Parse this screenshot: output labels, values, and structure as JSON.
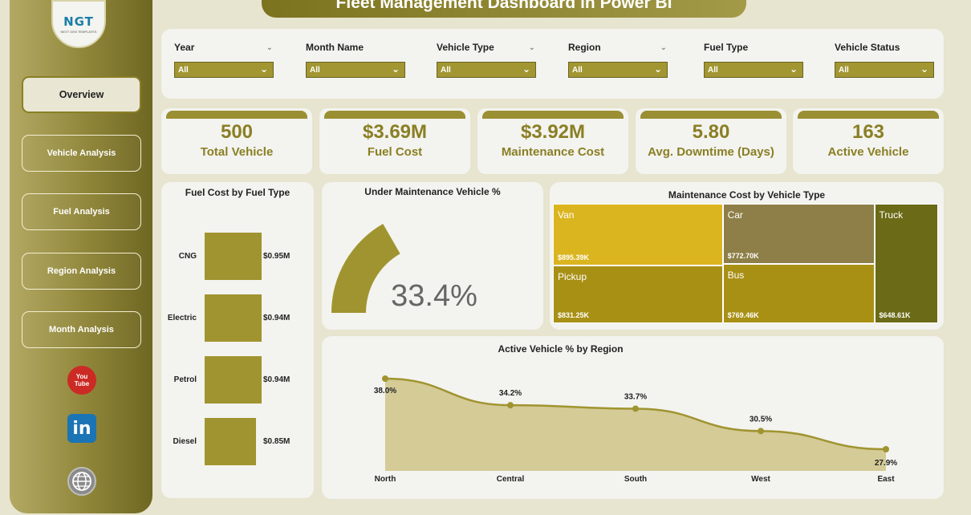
{
  "title": "Fleet Management Dashboard in Power BI",
  "logo": {
    "text": "NGT",
    "subtext": "NEXT GEN TEMPLATES"
  },
  "nav": [
    {
      "label": "Overview",
      "active": true
    },
    {
      "label": "Vehicle Analysis",
      "active": false
    },
    {
      "label": "Fuel Analysis",
      "active": false
    },
    {
      "label": "Region Analysis",
      "active": false
    },
    {
      "label": "Month Analysis",
      "active": false
    }
  ],
  "social": {
    "youtube": "You Tube",
    "linkedin": "in",
    "web_icon": "globe-www-icon"
  },
  "filters": [
    {
      "label": "Year",
      "value": "All"
    },
    {
      "label": "Month Name",
      "value": "All"
    },
    {
      "label": "Vehicle Type",
      "value": "All"
    },
    {
      "label": "Region",
      "value": "All"
    },
    {
      "label": "Fuel Type",
      "value": "All"
    },
    {
      "label": "Vehicle Status",
      "value": "All"
    }
  ],
  "kpis": [
    {
      "value": "500",
      "label": "Total Vehicle"
    },
    {
      "value": "$3.69M",
      "label": "Fuel Cost"
    },
    {
      "value": "$3.92M",
      "label": "Maintenance Cost"
    },
    {
      "value": "5.80",
      "label": "Avg. Downtime (Days)"
    },
    {
      "value": "163",
      "label": "Active Vehicle"
    }
  ],
  "colors": {
    "accent": "#a09430",
    "dark_accent": "#6b6a16",
    "sidebar": "#8f8539",
    "background": "#e7e4cf"
  },
  "chart_data": [
    {
      "type": "bar",
      "title": "Fuel Cost by Fuel Type",
      "categories": [
        "CNG",
        "Electric",
        "Petrol",
        "Diesel"
      ],
      "values": [
        0.95,
        0.94,
        0.94,
        0.85
      ],
      "value_labels": [
        "$0.95M",
        "$0.94M",
        "$0.94M",
        "$0.85M"
      ],
      "unit": "$M"
    },
    {
      "type": "gauge",
      "title": "Under Maintenance Vehicle %",
      "value": 33.4,
      "value_label": "33.4%",
      "max": 100
    },
    {
      "type": "treemap",
      "title": "Maintenance Cost by Vehicle Type",
      "categories": [
        "Van",
        "Pickup",
        "Car",
        "Bus",
        "Truck"
      ],
      "values": [
        895.39,
        831.25,
        772.7,
        769.46,
        648.61
      ],
      "value_labels": [
        "$895.39K",
        "$831.25K",
        "$772.70K",
        "$769.46K",
        "$648.61K"
      ],
      "colors": [
        "#dab51f",
        "#a89015",
        "#8d7f47",
        "#a89015",
        "#6b6a16"
      ],
      "unit": "$K"
    },
    {
      "type": "area",
      "title": "Active Vehicle % by Region",
      "categories": [
        "North",
        "Central",
        "South",
        "West",
        "East"
      ],
      "values": [
        38.0,
        34.2,
        33.7,
        30.5,
        27.9
      ],
      "value_labels": [
        "38.0%",
        "34.2%",
        "33.7%",
        "30.5%",
        "27.9%"
      ],
      "unit": "%"
    }
  ]
}
